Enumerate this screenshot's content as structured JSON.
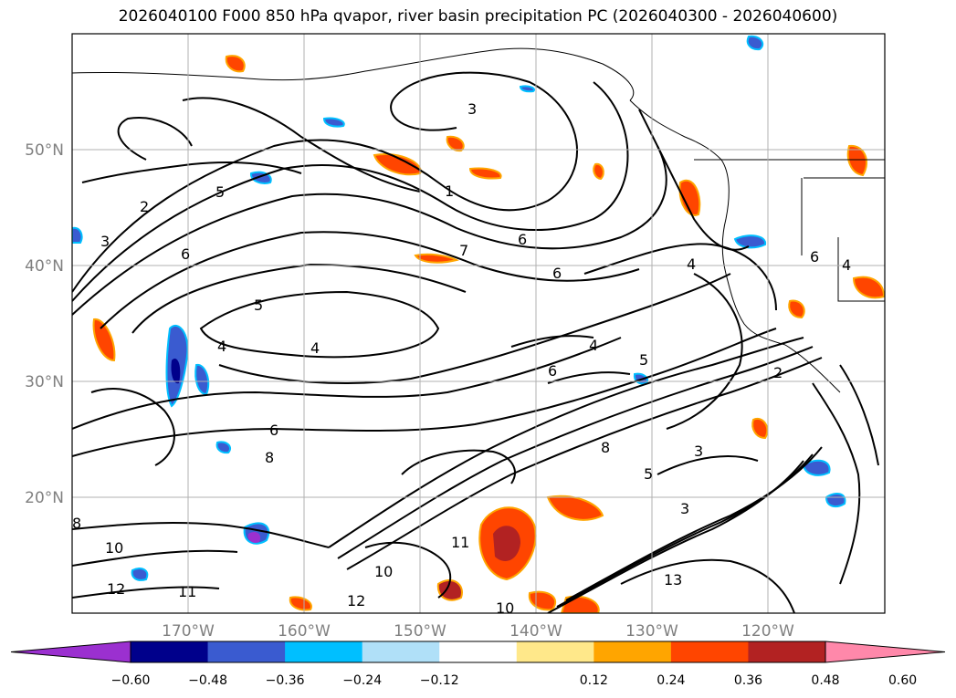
{
  "title": "2026040100 F000 850 hPa qvapor, river basin precipitation PC (2026040300 - 2026040600)",
  "map": {
    "latitude_labels": [
      "50°N",
      "40°N",
      "30°N",
      "20°N"
    ],
    "longitude_labels": [
      "170°W",
      "160°W",
      "150°W",
      "140°W",
      "130°W",
      "120°W"
    ],
    "contour_labels": [
      "2",
      "3",
      "5",
      "6",
      "1",
      "3",
      "6",
      "7",
      "6",
      "4",
      "5",
      "4",
      "4",
      "6",
      "4",
      "5",
      "6",
      "8",
      "8",
      "3",
      "5",
      "3",
      "11",
      "13",
      "10",
      "12",
      "11",
      "10",
      "12",
      "10",
      "8",
      "2",
      "4",
      "6"
    ]
  },
  "colorbar": {
    "tick_labels": [
      "−0.60",
      "−0.48",
      "−0.36",
      "−0.24",
      "−0.12",
      "0.12",
      "0.24",
      "0.36",
      "0.48",
      "0.60"
    ],
    "colors": [
      "#9b30d0",
      "#00008b",
      "#3a5bd0",
      "#00bfff",
      "#b0e0f8",
      "#ffffff",
      "#ffe88a",
      "#ffa500",
      "#ff4500",
      "#b22222",
      "#ff88aa"
    ]
  }
}
